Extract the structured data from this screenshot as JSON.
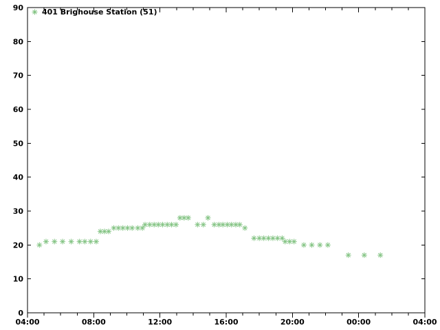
{
  "window": {
    "background": "#ffffff"
  },
  "chart_data": {
    "type": "scatter",
    "title": "",
    "xlabel": "",
    "ylabel": "",
    "grid": false,
    "legend_position": "upper-left",
    "legend": {
      "label": "401 Brighouse Station (51)",
      "marker": "asterisk-icon"
    },
    "marker_color": "#84c484",
    "axis_color": "#000000",
    "x": {
      "kind": "time-of-day",
      "range_hours": [
        4,
        28
      ],
      "major_tick_every_hours": 4,
      "minor_tick_every_hours": 1,
      "major_tick_labels": [
        "04:00",
        "08:00",
        "12:00",
        "16:00",
        "20:00",
        "00:00",
        "04:00"
      ]
    },
    "y": {
      "range": [
        0,
        90
      ],
      "major_tick_every": 10,
      "major_tick_labels": [
        "0",
        "10",
        "20",
        "30",
        "40",
        "50",
        "60",
        "70",
        "80",
        "90"
      ]
    },
    "series": [
      {
        "name": "401 Brighouse Station (51)",
        "marker": "asterisk",
        "color": "#84c484",
        "points": [
          [
            4.72,
            20
          ],
          [
            5.12,
            21
          ],
          [
            5.63,
            21
          ],
          [
            6.12,
            21
          ],
          [
            6.64,
            21
          ],
          [
            7.14,
            21
          ],
          [
            7.46,
            21
          ],
          [
            7.81,
            21
          ],
          [
            8.15,
            21
          ],
          [
            8.4,
            24
          ],
          [
            8.65,
            24
          ],
          [
            8.9,
            24
          ],
          [
            9.21,
            25
          ],
          [
            9.49,
            25
          ],
          [
            9.76,
            25
          ],
          [
            10.04,
            25
          ],
          [
            10.32,
            25
          ],
          [
            10.66,
            25
          ],
          [
            10.94,
            25
          ],
          [
            11.1,
            26
          ],
          [
            11.38,
            26
          ],
          [
            11.65,
            26
          ],
          [
            11.9,
            26
          ],
          [
            12.16,
            26
          ],
          [
            12.44,
            26
          ],
          [
            12.7,
            26
          ],
          [
            12.97,
            26
          ],
          [
            13.21,
            28
          ],
          [
            13.46,
            28
          ],
          [
            13.71,
            28
          ],
          [
            14.27,
            26
          ],
          [
            14.62,
            26
          ],
          [
            14.9,
            28
          ],
          [
            15.28,
            26
          ],
          [
            15.56,
            26
          ],
          [
            15.8,
            26
          ],
          [
            16.07,
            26
          ],
          [
            16.32,
            26
          ],
          [
            16.58,
            26
          ],
          [
            16.82,
            26
          ],
          [
            17.13,
            25
          ],
          [
            17.68,
            22
          ],
          [
            18.0,
            22
          ],
          [
            18.27,
            22
          ],
          [
            18.55,
            22
          ],
          [
            18.82,
            22
          ],
          [
            19.1,
            22
          ],
          [
            19.38,
            22
          ],
          [
            19.56,
            21
          ],
          [
            19.83,
            21
          ],
          [
            20.1,
            21
          ],
          [
            20.69,
            20
          ],
          [
            21.17,
            20
          ],
          [
            21.66,
            20
          ],
          [
            22.14,
            20
          ],
          [
            23.38,
            17
          ],
          [
            24.34,
            17
          ],
          [
            25.31,
            17
          ]
        ]
      }
    ]
  }
}
